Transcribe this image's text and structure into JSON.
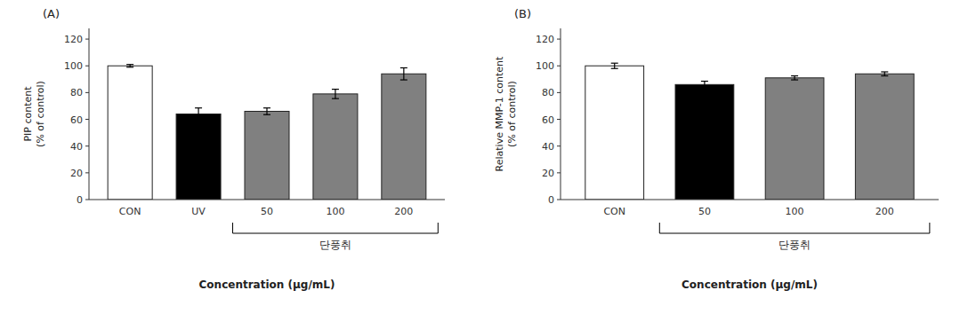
{
  "chart_data": [
    {
      "type": "bar",
      "title": "(A)",
      "categories": [
        "CON",
        "UV",
        "50",
        "100",
        "200"
      ],
      "values": [
        100,
        64,
        66,
        79,
        94
      ],
      "errors": [
        1.0,
        4.5,
        2.5,
        3.5,
        4.5
      ],
      "colors": [
        "white",
        "black",
        "#808080",
        "#808080",
        "#808080"
      ],
      "ylabel": "PIP content\n(% of control)",
      "xlabel": "Concentration (μg/mL)",
      "ylim": [
        0,
        128
      ],
      "yticks": [
        0,
        20,
        40,
        60,
        80,
        100,
        120
      ],
      "grid": false,
      "annotations": [
        {
          "text": "단풍취",
          "from": "50",
          "to": "200"
        }
      ]
    },
    {
      "type": "bar",
      "title": "(B)",
      "categories": [
        "CON",
        "50",
        "100",
        "200"
      ],
      "values": [
        100,
        86,
        91,
        94
      ],
      "errors": [
        2.0,
        2.5,
        1.5,
        1.5
      ],
      "colors": [
        "white",
        "black",
        "#808080",
        "#808080"
      ],
      "ylabel": "Relative MMP-1 content\n(% of control)",
      "xlabel": "Concentration (μg/mL)",
      "ylim": [
        0,
        128
      ],
      "yticks": [
        0,
        20,
        40,
        60,
        80,
        100,
        120
      ],
      "grid": false,
      "annotations": [
        {
          "text": "단풍취",
          "from": "50",
          "to": "200"
        }
      ]
    }
  ]
}
